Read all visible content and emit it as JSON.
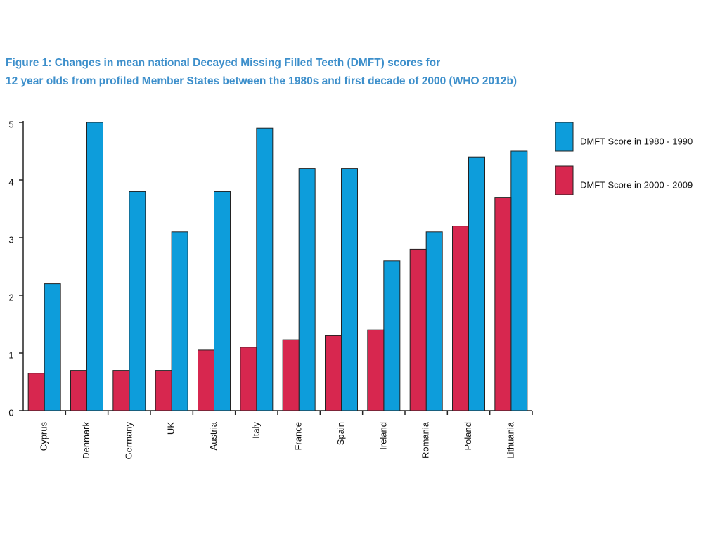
{
  "chart_data": {
    "type": "bar",
    "title": [
      "Figure 1: Changes in mean national Decayed Missing Filled Teeth (DMFT) scores for",
      "12 year olds from profiled Member States between the 1980s and first decade of 2000 (WHO 2012b)"
    ],
    "categories": [
      "Cyprus",
      "Denmark",
      "Germany",
      "UK",
      "Austria",
      "Italy",
      "France",
      "Spain",
      "Ireland",
      "Romania",
      "Poland",
      "Lithuania"
    ],
    "series": [
      {
        "name": "DMFT Score in 1980 - 1990",
        "color": "#0d9ddb",
        "values": [
          2.2,
          5.0,
          3.8,
          3.1,
          3.8,
          4.9,
          4.2,
          4.2,
          2.6,
          3.1,
          4.4,
          4.5
        ]
      },
      {
        "name": "DMFT Score in 2000 - 2009",
        "color": "#d7274f",
        "values": [
          0.65,
          0.7,
          0.7,
          0.7,
          1.05,
          1.1,
          1.23,
          1.3,
          1.4,
          2.8,
          3.2,
          3.7
        ]
      }
    ],
    "ylim": [
      0,
      5
    ],
    "yticks": [
      0,
      1,
      2,
      3,
      4,
      5
    ],
    "grid": false,
    "legend": "right"
  }
}
